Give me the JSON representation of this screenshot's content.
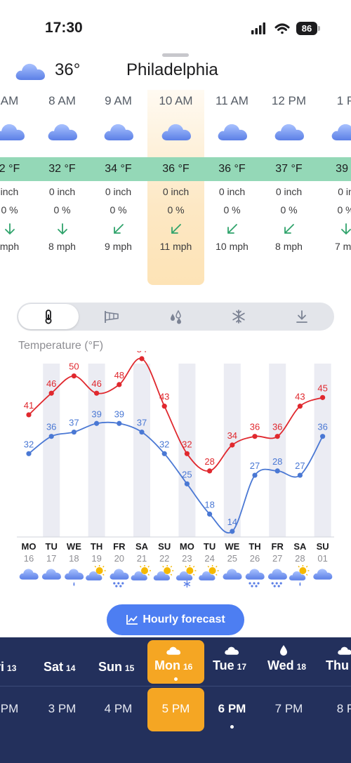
{
  "status_bar": {
    "time": "17:30",
    "battery": "86"
  },
  "header": {
    "current_temp": "36°",
    "city": "Philadelphia",
    "icon": "cloud-icon"
  },
  "hourly": [
    {
      "time": "AM",
      "temp": "2 °F",
      "precip": "inch",
      "prob": "0 %",
      "wind": "mph",
      "wind_dir": "down"
    },
    {
      "time": "8 AM",
      "temp": "32 °F",
      "precip": "0 inch",
      "prob": "0 %",
      "wind": "8 mph",
      "wind_dir": "down"
    },
    {
      "time": "9 AM",
      "temp": "34 °F",
      "precip": "0 inch",
      "prob": "0 %",
      "wind": "9 mph",
      "wind_dir": "down-left"
    },
    {
      "time": "10 AM",
      "temp": "36 °F",
      "precip": "0 inch",
      "prob": "0 %",
      "wind": "11 mph",
      "wind_dir": "down-left"
    },
    {
      "time": "11 AM",
      "temp": "36 °F",
      "precip": "0 inch",
      "prob": "0 %",
      "wind": "10 mph",
      "wind_dir": "down-left"
    },
    {
      "time": "12 PM",
      "temp": "37 °F",
      "precip": "0 inch",
      "prob": "0 %",
      "wind": "8 mph",
      "wind_dir": "down-left"
    },
    {
      "time": "1 P",
      "temp": "39 °",
      "precip": "0 in",
      "prob": "0 %",
      "wind": "7 mp",
      "wind_dir": "down"
    }
  ],
  "chart_tabs": [
    {
      "icon": "thermometer-icon",
      "active": true
    },
    {
      "icon": "windsock-icon",
      "active": false
    },
    {
      "icon": "droplets-icon",
      "active": false
    },
    {
      "icon": "snowflake-icon",
      "active": false
    },
    {
      "icon": "download-arrow-icon",
      "active": false
    }
  ],
  "chart_title": "Temperature (°F)",
  "chart_data": {
    "type": "line",
    "title": "Temperature (°F)",
    "categories": [
      "MO",
      "TU",
      "WE",
      "TH",
      "FR",
      "SA",
      "SU",
      "MO",
      "TU",
      "WE",
      "TH",
      "FR",
      "SA",
      "SU"
    ],
    "dates": [
      "16",
      "17",
      "18",
      "19",
      "20",
      "21",
      "22",
      "23",
      "24",
      "25",
      "26",
      "27",
      "28",
      "01"
    ],
    "series": [
      {
        "values": [
          41,
          46,
          50,
          46,
          48,
          54,
          43,
          32,
          28,
          34,
          36,
          36,
          43,
          45
        ],
        "color": "#e0282e"
      },
      {
        "values": [
          32,
          36,
          37,
          39,
          39,
          37,
          32,
          25,
          18,
          14,
          27,
          28,
          27,
          36
        ],
        "color": "#4a78d4"
      }
    ],
    "ylim": [
      14,
      54
    ],
    "weekend_shading": [
      1,
      3,
      5,
      7,
      9,
      11,
      13
    ],
    "day_icons": [
      "cloud-icon",
      "cloud-icon",
      "cloud-rain-light-icon",
      "sun-cloud-icon",
      "cloud-hail-icon",
      "sun-cloud-icon",
      "sun-cloud-icon",
      "sun-cloud-snow-icon",
      "sun-cloud-icon",
      "cloud-icon",
      "cloud-hail-icon",
      "cloud-hail-icon",
      "sun-rain-icon",
      "cloud-icon"
    ]
  },
  "hourly_button": {
    "label": "Hourly forecast",
    "icon": "chart-line-icon"
  },
  "days": [
    {
      "name": "ri",
      "num": "13"
    },
    {
      "name": "Sat",
      "num": "14"
    },
    {
      "name": "Sun",
      "num": "15"
    },
    {
      "name": "Mon",
      "num": "16",
      "icon": "cloud-icon",
      "selected": true
    },
    {
      "name": "Tue",
      "num": "17",
      "icon": "cloud-icon"
    },
    {
      "name": "Wed",
      "num": "18",
      "icon": "raindrop-icon"
    },
    {
      "name": "Thu",
      "num": "",
      "icon": "sun-cloud-icon"
    }
  ],
  "times": [
    {
      "label": "PM"
    },
    {
      "label": "3 PM"
    },
    {
      "label": "4 PM"
    },
    {
      "label": "5 PM",
      "selected": true
    },
    {
      "label": "6 PM",
      "bold": true
    },
    {
      "label": "7 PM"
    },
    {
      "label": "8 P"
    }
  ],
  "colors": {
    "accent_blue": "#4d7ef2",
    "highlight_orange": "#f5a623",
    "temp_band_green": "#94d8b7",
    "panel_navy": "#23305c",
    "high_temp_red": "#e0282e",
    "low_temp_blue": "#4a78d4"
  }
}
